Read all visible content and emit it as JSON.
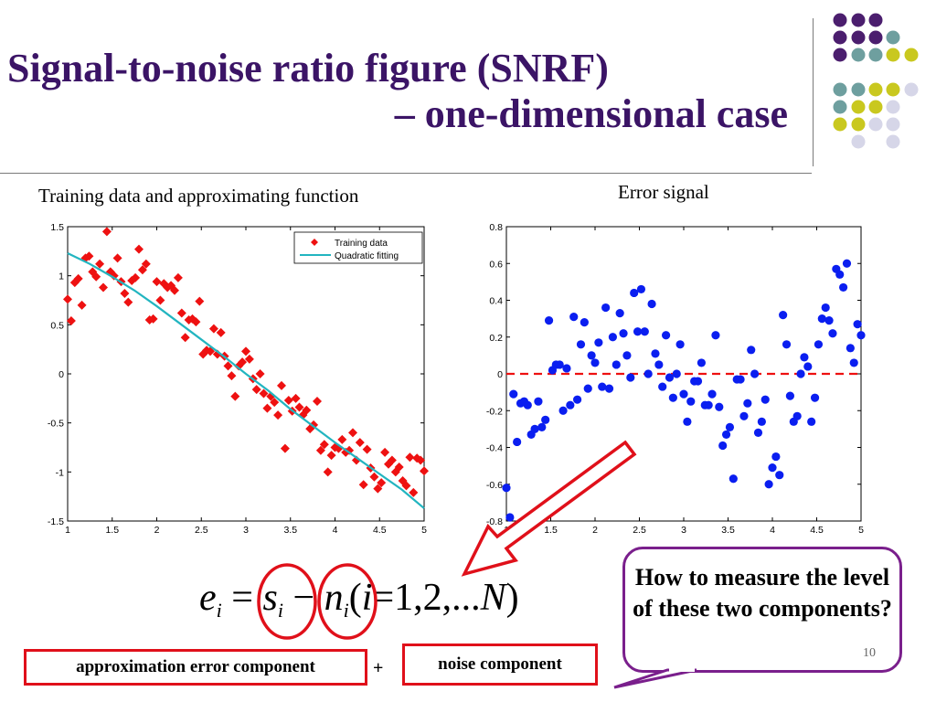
{
  "slide": {
    "title_line1": "Signal-to-noise ratio figure (SNRF)",
    "title_line2": "– one-dimensional case",
    "left_plot_title": "Training data and approximating function",
    "right_plot_title": "Error signal",
    "equation": {
      "e": "e",
      "i": "i",
      "eq1": "=",
      "s": "s",
      "minus": "−",
      "n": "n",
      "paren_open": "(",
      "eq2": "=",
      "range": "1,2,...",
      "N": "N",
      "paren_close": ")"
    },
    "label_approx": "approximation error component",
    "label_plus": "+",
    "label_noise": "noise component",
    "callout": "How to measure the level of these two components?",
    "slide_number": "10",
    "colors": {
      "title": "#3b1466",
      "training": "#ee1111",
      "fit": "#22b5c0",
      "error": "#0a1ef0",
      "zero_line": "#ee1111",
      "box_border": "#e0101a",
      "callout_border": "#7a1f8c"
    }
  },
  "chart_data": [
    {
      "type": "scatter",
      "title": "",
      "xlabel": "",
      "ylabel": "",
      "xlim": [
        1,
        5
      ],
      "ylim": [
        -1.5,
        1.5
      ],
      "xticks": [
        "1",
        "1.5",
        "2",
        "2.5",
        "3",
        "3.5",
        "4",
        "4.5",
        "5"
      ],
      "yticks": [
        "1.5",
        "1",
        "0.5",
        "0",
        "-0.5",
        "-1",
        "-1.5"
      ],
      "legend_position": "top-right",
      "legend": [
        "Training data",
        "Quadratic fitting"
      ],
      "series": [
        {
          "name": "Training data",
          "marker": "diamond",
          "x": [
            1.0,
            1.04,
            1.08,
            1.12,
            1.16,
            1.2,
            1.24,
            1.28,
            1.32,
            1.36,
            1.4,
            1.44,
            1.48,
            1.52,
            1.56,
            1.6,
            1.64,
            1.68,
            1.72,
            1.76,
            1.8,
            1.84,
            1.88,
            1.92,
            1.96,
            2.0,
            2.04,
            2.08,
            2.12,
            2.16,
            2.2,
            2.24,
            2.28,
            2.32,
            2.36,
            2.4,
            2.44,
            2.48,
            2.52,
            2.56,
            2.6,
            2.64,
            2.68,
            2.72,
            2.76,
            2.8,
            2.84,
            2.88,
            2.92,
            2.96,
            3.0,
            3.04,
            3.08,
            3.12,
            3.16,
            3.2,
            3.24,
            3.28,
            3.32,
            3.36,
            3.4,
            3.44,
            3.48,
            3.52,
            3.56,
            3.6,
            3.64,
            3.68,
            3.72,
            3.76,
            3.8,
            3.84,
            3.88,
            3.92,
            3.96,
            4.0,
            4.04,
            4.08,
            4.12,
            4.16,
            4.2,
            4.24,
            4.28,
            4.32,
            4.36,
            4.4,
            4.44,
            4.48,
            4.52,
            4.56,
            4.6,
            4.64,
            4.68,
            4.72,
            4.76,
            4.8,
            4.84,
            4.88,
            4.92,
            4.96,
            5.0
          ],
          "y": [
            0.76,
            0.54,
            0.93,
            0.97,
            0.7,
            1.18,
            1.2,
            1.04,
            0.99,
            1.12,
            0.88,
            1.45,
            1.04,
            1.0,
            1.18,
            0.94,
            0.82,
            0.73,
            0.95,
            0.98,
            1.27,
            1.06,
            1.12,
            0.55,
            0.56,
            0.94,
            0.75,
            0.92,
            0.88,
            0.9,
            0.85,
            0.98,
            0.62,
            0.37,
            0.55,
            0.56,
            0.53,
            0.74,
            0.2,
            0.24,
            0.23,
            0.46,
            0.2,
            0.42,
            0.18,
            0.08,
            -0.02,
            -0.23,
            0.08,
            0.12,
            0.23,
            0.15,
            -0.05,
            -0.16,
            0.0,
            -0.2,
            -0.35,
            -0.23,
            -0.29,
            -0.42,
            -0.12,
            -0.76,
            -0.27,
            -0.38,
            -0.25,
            -0.34,
            -0.42,
            -0.37,
            -0.56,
            -0.52,
            -0.28,
            -0.78,
            -0.72,
            -1.0,
            -0.83,
            -0.75,
            -0.76,
            -0.67,
            -0.8,
            -0.78,
            -0.6,
            -0.88,
            -0.7,
            -1.13,
            -0.77,
            -0.96,
            -1.05,
            -1.17,
            -1.11,
            -0.8,
            -0.92,
            -0.88,
            -1.0,
            -0.95,
            -1.09,
            -1.14,
            -0.85,
            -1.21,
            -0.86,
            -0.88,
            -0.99
          ]
        },
        {
          "name": "Quadratic fitting",
          "marker": "line",
          "x": [
            1.0,
            1.25,
            1.5,
            1.75,
            2.0,
            2.25,
            2.5,
            2.75,
            3.0,
            3.25,
            3.5,
            3.75,
            4.0,
            4.25,
            4.5,
            4.75,
            5.0
          ],
          "y": [
            1.23,
            1.12,
            0.99,
            0.85,
            0.69,
            0.52,
            0.35,
            0.18,
            0.0,
            -0.17,
            -0.36,
            -0.53,
            -0.7,
            -0.86,
            -1.02,
            -1.18,
            -1.37
          ]
        }
      ]
    },
    {
      "type": "scatter",
      "title": "",
      "xlabel": "",
      "ylabel": "",
      "xlim": [
        1,
        5
      ],
      "ylim": [
        -0.8,
        0.8
      ],
      "xticks": [
        "1",
        "1.5",
        "2",
        "2.5",
        "3",
        "3.5",
        "4",
        "4.5",
        "5"
      ],
      "yticks": [
        "0.8",
        "0.6",
        "0.4",
        "0.2",
        "0",
        "-0.2",
        "-0.4",
        "-0.6",
        "-0.8"
      ],
      "series": [
        {
          "name": "Error signal",
          "marker": "circle",
          "x": [
            1.0,
            1.04,
            1.08,
            1.12,
            1.16,
            1.2,
            1.24,
            1.28,
            1.32,
            1.36,
            1.4,
            1.44,
            1.48,
            1.52,
            1.56,
            1.6,
            1.64,
            1.68,
            1.72,
            1.76,
            1.8,
            1.84,
            1.88,
            1.92,
            1.96,
            2.0,
            2.04,
            2.08,
            2.12,
            2.16,
            2.2,
            2.24,
            2.28,
            2.32,
            2.36,
            2.4,
            2.44,
            2.48,
            2.52,
            2.56,
            2.6,
            2.64,
            2.68,
            2.72,
            2.76,
            2.8,
            2.84,
            2.88,
            2.92,
            2.96,
            3.0,
            3.04,
            3.08,
            3.12,
            3.16,
            3.2,
            3.24,
            3.28,
            3.32,
            3.36,
            3.4,
            3.44,
            3.48,
            3.52,
            3.56,
            3.6,
            3.64,
            3.68,
            3.72,
            3.76,
            3.8,
            3.84,
            3.88,
            3.92,
            3.96,
            4.0,
            4.04,
            4.08,
            4.12,
            4.16,
            4.2,
            4.24,
            4.28,
            4.32,
            4.36,
            4.4,
            4.44,
            4.48,
            4.52,
            4.56,
            4.6,
            4.64,
            4.68,
            4.72,
            4.76,
            4.8,
            4.84,
            4.88,
            4.92,
            4.96,
            5.0
          ],
          "y": [
            -0.62,
            -0.78,
            -0.11,
            -0.37,
            -0.16,
            -0.15,
            -0.17,
            -0.33,
            -0.3,
            -0.15,
            -0.29,
            -0.25,
            0.29,
            0.02,
            0.05,
            0.05,
            -0.2,
            0.03,
            -0.17,
            0.31,
            -0.14,
            0.16,
            0.28,
            -0.08,
            0.1,
            0.06,
            0.17,
            -0.07,
            0.36,
            -0.08,
            0.2,
            0.05,
            0.33,
            0.22,
            0.1,
            -0.02,
            0.44,
            0.23,
            0.46,
            0.23,
            0.0,
            0.38,
            0.11,
            0.05,
            -0.07,
            0.21,
            -0.02,
            -0.13,
            0.0,
            0.16,
            -0.11,
            -0.26,
            -0.15,
            -0.04,
            -0.04,
            0.06,
            -0.17,
            -0.17,
            -0.11,
            0.21,
            -0.18,
            -0.39,
            -0.33,
            -0.29,
            -0.57,
            -0.03,
            -0.03,
            -0.23,
            -0.16,
            0.13,
            0.0,
            -0.32,
            -0.26,
            -0.14,
            -0.6,
            -0.51,
            -0.45,
            -0.55,
            0.32,
            0.16,
            -0.12,
            -0.26,
            -0.23,
            0.0,
            0.09,
            0.04,
            -0.26,
            -0.13,
            0.16,
            0.3,
            0.36,
            0.29,
            0.22,
            0.57,
            0.54,
            0.47,
            0.6,
            0.14,
            0.06,
            0.27,
            0.21
          ]
        }
      ]
    }
  ]
}
